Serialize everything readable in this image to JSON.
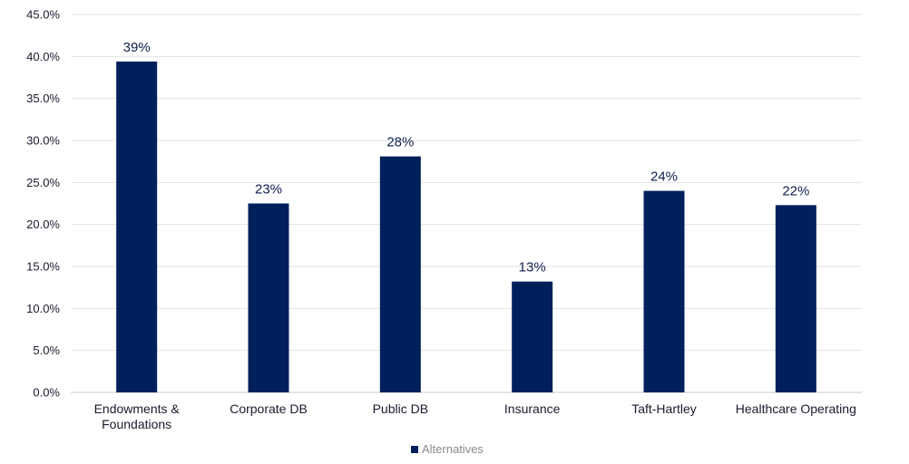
{
  "chart_data": {
    "type": "bar",
    "categories": [
      "Endowments & Foundations",
      "Corporate DB",
      "Public DB",
      "Insurance",
      "Taft-Hartley",
      "Healthcare Operating"
    ],
    "category_lines": [
      [
        "Endowments &",
        "Foundations"
      ],
      [
        "Corporate DB"
      ],
      [
        "Public DB"
      ],
      [
        "Insurance"
      ],
      [
        "Taft-Hartley"
      ],
      [
        "Healthcare Operating"
      ]
    ],
    "series": [
      {
        "name": "Alternatives",
        "values": [
          39.4,
          22.5,
          28.1,
          13.2,
          24.0,
          22.3
        ],
        "labels": [
          "39%",
          "23%",
          "28%",
          "13%",
          "24%",
          "22%"
        ],
        "color": "#00205b"
      }
    ],
    "ylim": [
      0,
      45
    ],
    "yticks": [
      0,
      5,
      10,
      15,
      20,
      25,
      30,
      35,
      40,
      45
    ],
    "ytick_labels": [
      "0.0%",
      "5.0%",
      "10.0%",
      "15.0%",
      "20.0%",
      "25.0%",
      "30.0%",
      "35.0%",
      "40.0%",
      "45.0%"
    ],
    "title": "",
    "xlabel": "",
    "ylabel": "",
    "grid": true,
    "legend_position": "bottom-center"
  }
}
